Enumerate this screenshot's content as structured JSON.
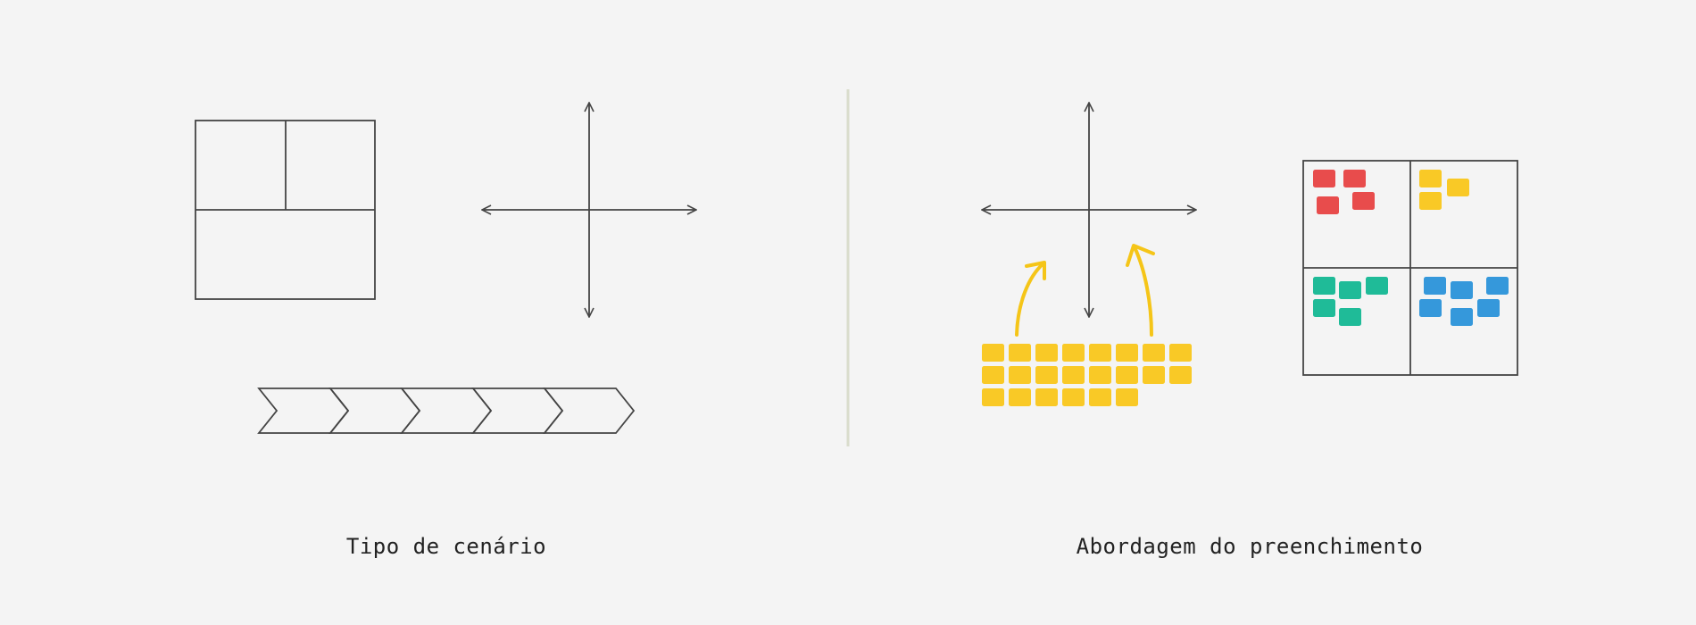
{
  "left_panel": {
    "caption": "Tipo de cenário",
    "chevron_count": 5
  },
  "right_panel": {
    "caption": "Abordagem do preenchimento",
    "sticky_grid": {
      "rows": [
        8,
        8,
        6
      ]
    },
    "quadrant_notes": {
      "top_left": {
        "count": 4,
        "color": "#e84c4c"
      },
      "top_right": {
        "count": 3,
        "color": "#f9c926"
      },
      "bottom_left": {
        "count": 5,
        "color": "#1fbb98"
      },
      "bottom_right": {
        "count": 6,
        "color": "#3598db"
      }
    }
  },
  "colors": {
    "background": "#f4f4f4",
    "stroke": "#444444",
    "divider": "#d9dccc",
    "sticky_yellow": "#f9c926",
    "arrow_yellow": "#f5c518"
  }
}
